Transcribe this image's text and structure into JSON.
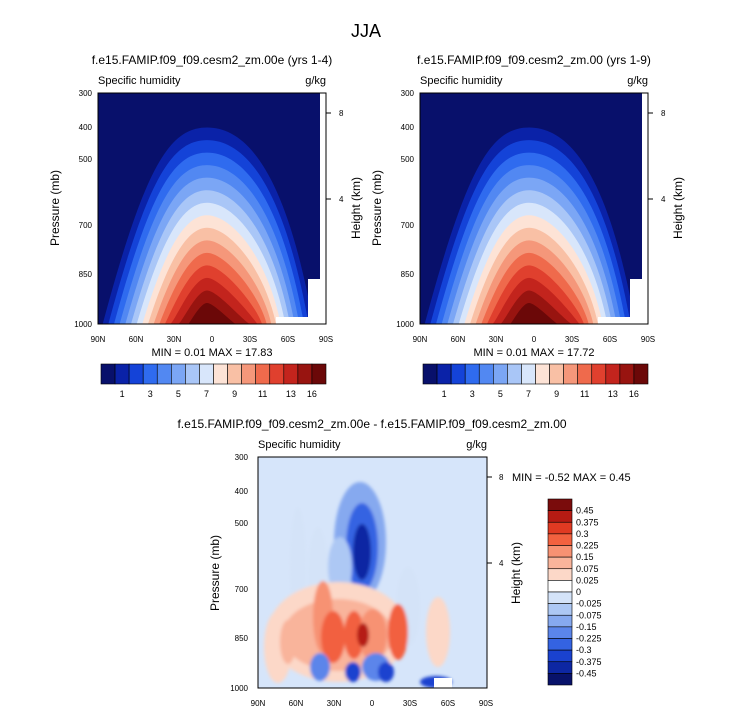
{
  "figure_title": "JJA",
  "panels": [
    {
      "title": "f.e15.FAMIP.f09_f09.cesm2_zm.00e (yrs 1-4)",
      "left_label": "Specific humidity",
      "right_label": "g/kg",
      "ylabel": "Pressure (mb)",
      "ylabel_right": "Height (km)",
      "stats": "MIN =  0.01  MAX = 17.83"
    },
    {
      "title": "f.e15.FAMIP.f09_f09.cesm2_zm.00 (yrs 1-9)",
      "left_label": "Specific humidity",
      "right_label": "g/kg",
      "ylabel": "Pressure (mb)",
      "ylabel_right": "Height (km)",
      "stats": "MIN =  0.01  MAX = 17.72"
    },
    {
      "title": "f.e15.FAMIP.f09_f09.cesm2_zm.00e - f.e15.FAMIP.f09_f09.cesm2_zm.00",
      "left_label": "Specific humidity",
      "right_label": "g/kg",
      "ylabel": "Pressure (mb)",
      "ylabel_right": "Height (km)",
      "stats": "MIN =  -0.52  MAX =  0.45"
    }
  ],
  "chart_data": [
    {
      "type": "heatmap",
      "title": "f.e15.FAMIP.f09_f09.cesm2_zm.00e (yrs 1-4)",
      "xlabel": "",
      "ylabel": "Pressure (mb)",
      "x_ticks": [
        "90N",
        "60N",
        "30N",
        "0",
        "30S",
        "60S",
        "90S"
      ],
      "y_ticks": [
        "300",
        "400",
        "500",
        "700",
        "850",
        "1000"
      ],
      "y_right_ticks": [
        "8",
        "4"
      ],
      "units": "g/kg",
      "min": 0.01,
      "max": 17.83
    },
    {
      "type": "heatmap",
      "title": "f.e15.FAMIP.f09_f09.cesm2_zm.00 (yrs 1-9)",
      "xlabel": "",
      "ylabel": "Pressure (mb)",
      "x_ticks": [
        "90N",
        "60N",
        "30N",
        "0",
        "30S",
        "60S",
        "90S"
      ],
      "y_ticks": [
        "300",
        "400",
        "500",
        "700",
        "850",
        "1000"
      ],
      "y_right_ticks": [
        "8",
        "4"
      ],
      "units": "g/kg",
      "min": 0.01,
      "max": 17.72
    },
    {
      "type": "heatmap",
      "title": "f.e15.FAMIP.f09_f09.cesm2_zm.00e - f.e15.FAMIP.f09_f09.cesm2_zm.00",
      "xlabel": "",
      "ylabel": "Pressure (mb)",
      "x_ticks": [
        "90N",
        "60N",
        "30N",
        "0",
        "30S",
        "60S",
        "90S"
      ],
      "y_ticks": [
        "300",
        "400",
        "500",
        "700",
        "850",
        "1000"
      ],
      "y_right_ticks": [
        "8",
        "4"
      ],
      "units": "g/kg",
      "min": -0.52,
      "max": 0.45
    }
  ],
  "colorbar_top": {
    "colors": [
      "#08106b",
      "#0a22a8",
      "#1443d8",
      "#2f6bef",
      "#5288f2",
      "#7ba6f5",
      "#a9c6f7",
      "#d8e6fb",
      "#fde3d6",
      "#f9c0a5",
      "#f5977a",
      "#ef6a4c",
      "#e0402e",
      "#c3241d",
      "#981410",
      "#6b0808"
    ],
    "labels": [
      "1",
      "3",
      "5",
      "7",
      "9",
      "11",
      "13",
      "16"
    ]
  },
  "colorbar_diff": {
    "colors": [
      "#7a0c0c",
      "#b61b13",
      "#e03a22",
      "#f2613f",
      "#f79273",
      "#f9b49b",
      "#fcd8c8",
      "#ffffff",
      "#d4e3f8",
      "#adc8f4",
      "#86a9ef",
      "#5b85ea",
      "#3463e2",
      "#1a42cf",
      "#0d27a3",
      "#08126a"
    ],
    "labels": [
      "0.45",
      "0.375",
      "0.3",
      "0.225",
      "0.15",
      "0.075",
      "0.025",
      "0",
      "-0.025",
      "-0.075",
      "-0.15",
      "-0.225",
      "-0.3",
      "-0.375",
      "-0.45"
    ]
  }
}
